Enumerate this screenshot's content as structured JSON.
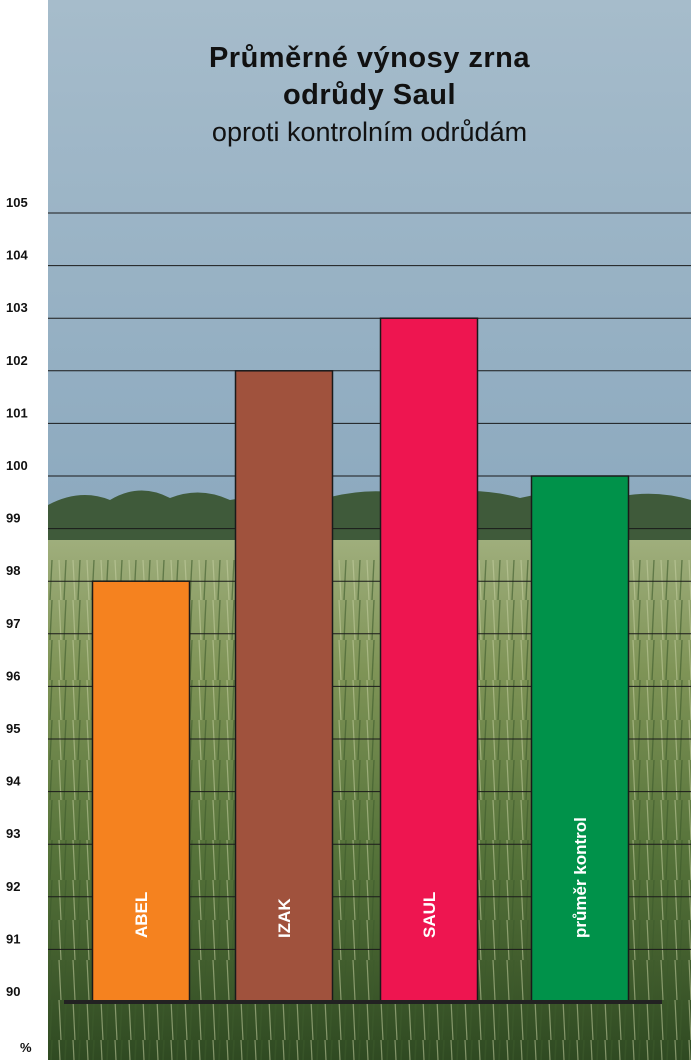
{
  "chart_data": {
    "type": "bar",
    "title_line1": "Průměrné výnosy zrna",
    "title_line2": "odrůdy Saul",
    "subtitle": "oproti kontrolním odrůdám",
    "ylabel": "%",
    "ylim": [
      90,
      105
    ],
    "yticks": [
      90,
      91,
      92,
      93,
      94,
      95,
      96,
      97,
      98,
      99,
      100,
      101,
      102,
      103,
      104,
      105
    ],
    "grid": true,
    "categories": [
      "ABEL",
      "IZAK",
      "SAUL",
      "průměr kontrol"
    ],
    "values": [
      98,
      102,
      103,
      100
    ],
    "colors": [
      "#f5821f",
      "#a0523d",
      "#ee1550",
      "#00924a"
    ]
  }
}
